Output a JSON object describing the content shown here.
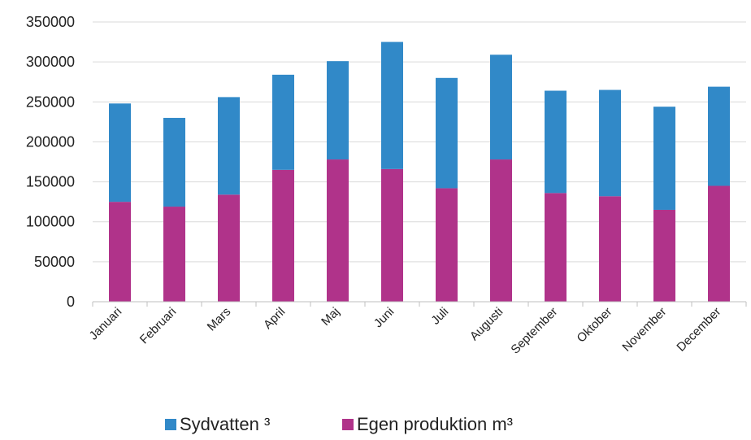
{
  "chart_data": {
    "type": "bar",
    "stacked": true,
    "title": "",
    "xlabel": "",
    "ylabel": "",
    "categories": [
      "Januari",
      "Februari",
      "Mars",
      "April",
      "Maj",
      "Juni",
      "Juli",
      "Augusti",
      "September",
      "Oktober",
      "November",
      "December"
    ],
    "series": [
      {
        "name": "Egen produktion m³",
        "color": "#b0338a",
        "values": [
          125000,
          119000,
          134000,
          165000,
          178000,
          166000,
          142000,
          178000,
          136000,
          132000,
          115000,
          145000
        ]
      },
      {
        "name": "Sydvatten ³",
        "color": "#3189c8",
        "values": [
          123000,
          111000,
          122000,
          119000,
          123000,
          159000,
          138000,
          131000,
          128000,
          133000,
          129000,
          124000
        ]
      }
    ],
    "ylim": [
      0,
      350000
    ],
    "yticks": [
      0,
      50000,
      100000,
      150000,
      200000,
      250000,
      300000,
      350000
    ],
    "grid": true,
    "legend": {
      "position": "bottom",
      "order": [
        "Sydvatten ³",
        "Egen produktion m³"
      ]
    }
  }
}
